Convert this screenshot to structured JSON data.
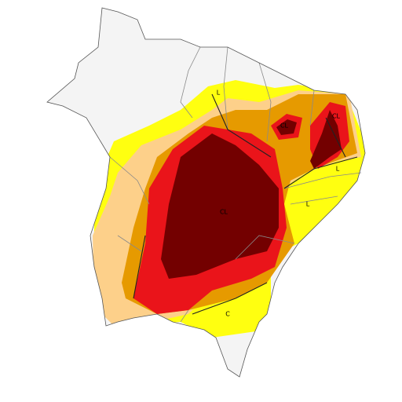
{
  "labels": [
    {
      "text": "L"
    },
    {
      "text": "CL"
    },
    {
      "text": "CL"
    },
    {
      "text": "L"
    },
    {
      "text": "CL"
    },
    {
      "text": "L"
    },
    {
      "text": "C"
    }
  ]
}
